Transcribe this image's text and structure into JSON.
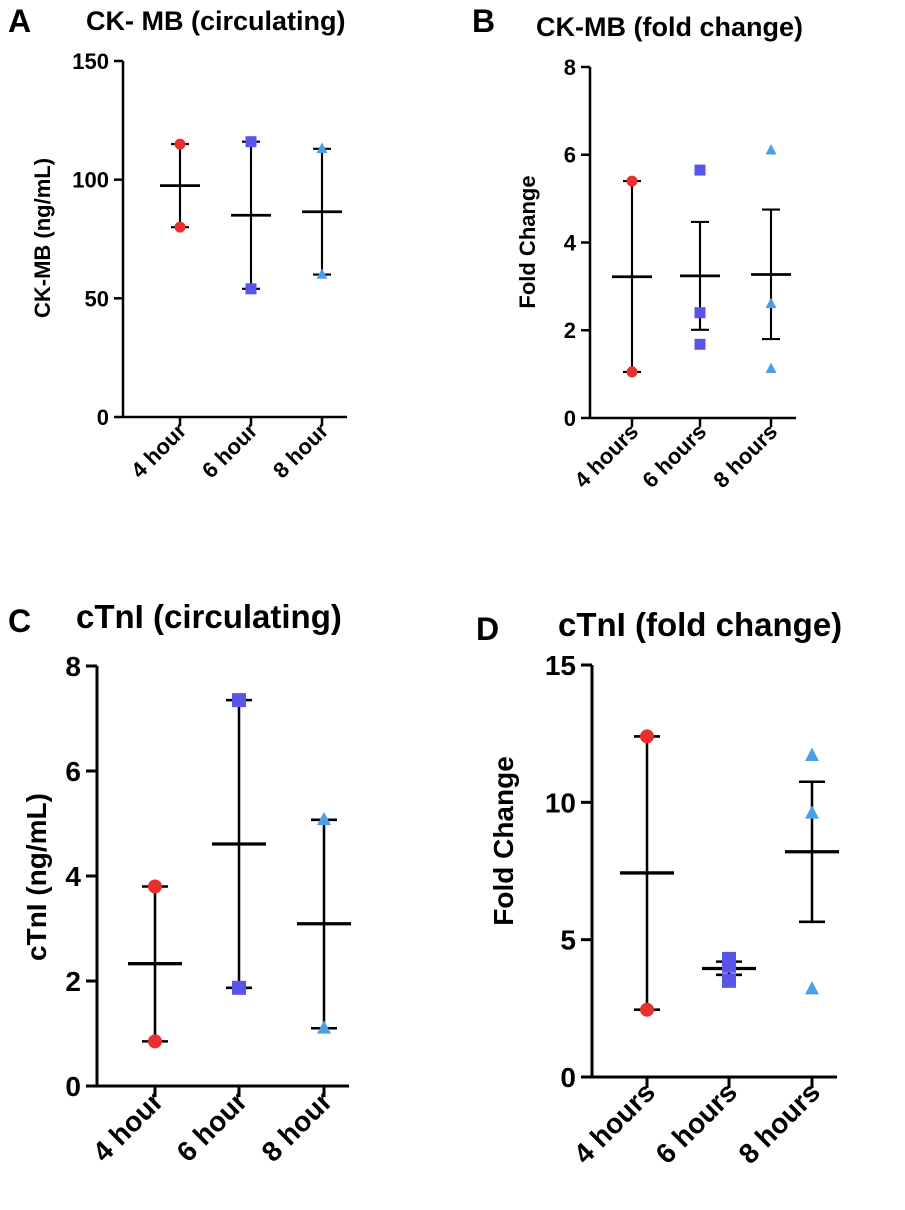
{
  "colors": {
    "red": "#e8302f",
    "purple": "#5a55ea",
    "lightblue": "#4a9fe8",
    "axis": "#000000"
  },
  "chart_data": [
    {
      "type": "scatter",
      "panel_label": "A",
      "title": "CK- MB (circulating)",
      "xlabel": "",
      "ylabel": "CK-MB (ng/mL)",
      "ylim": [
        0,
        150
      ],
      "yticks": [
        0,
        50,
        100,
        150
      ],
      "categories": [
        "4 hour",
        "6 hour",
        "8 hour"
      ],
      "series": [
        {
          "name": "4 hour",
          "marker": "circle",
          "color": "red",
          "points": [
            115,
            80
          ],
          "mean": 97.5,
          "upper": 115,
          "lower": 80
        },
        {
          "name": "6 hour",
          "marker": "square",
          "color": "purple",
          "points": [
            116,
            54
          ],
          "mean": 85,
          "upper": 116,
          "lower": 54
        },
        {
          "name": "8 hour",
          "marker": "triangle",
          "color": "lightblue",
          "points": [
            113,
            60
          ],
          "mean": 86.5,
          "upper": 113,
          "lower": 60
        }
      ]
    },
    {
      "type": "scatter",
      "panel_label": "B",
      "title": "CK-MB (fold change)",
      "xlabel": "",
      "ylabel": "Fold Change",
      "ylim": [
        0,
        8
      ],
      "yticks": [
        0,
        2,
        4,
        6,
        8
      ],
      "categories": [
        "4 hours",
        "6 hours",
        "8 hours"
      ],
      "series": [
        {
          "name": "4 hours",
          "marker": "circle",
          "color": "red",
          "points": [
            5.4,
            1.05
          ],
          "mean": 3.22,
          "upper": 5.4,
          "lower": 1.05
        },
        {
          "name": "6 hours",
          "marker": "square",
          "color": "purple",
          "points": [
            5.65,
            2.4,
            1.68
          ],
          "mean": 3.24,
          "upper": 4.47,
          "lower": 2.01
        },
        {
          "name": "8 hours",
          "marker": "triangle",
          "color": "lightblue",
          "points": [
            6.1,
            2.6,
            1.12
          ],
          "mean": 3.27,
          "upper": 4.75,
          "lower": 1.8
        }
      ]
    },
    {
      "type": "scatter",
      "panel_label": "C",
      "title": "cTnI (circulating)",
      "xlabel": "",
      "ylabel": "cTnI (ng/mL)",
      "ylim": [
        0,
        8
      ],
      "yticks": [
        0,
        2,
        4,
        6,
        8
      ],
      "categories": [
        "4 hour",
        "6 hour",
        "8 hour"
      ],
      "series": [
        {
          "name": "4 hour",
          "marker": "circle",
          "color": "red",
          "points": [
            3.8,
            0.85
          ],
          "mean": 2.33,
          "upper": 3.8,
          "lower": 0.85
        },
        {
          "name": "6 hour",
          "marker": "square",
          "color": "purple",
          "points": [
            7.35,
            1.87
          ],
          "mean": 4.61,
          "upper": 7.35,
          "lower": 1.87
        },
        {
          "name": "8 hour",
          "marker": "triangle",
          "color": "lightblue",
          "points": [
            5.07,
            1.1
          ],
          "mean": 3.09,
          "upper": 5.07,
          "lower": 1.1
        }
      ]
    },
    {
      "type": "scatter",
      "panel_label": "D",
      "title": "cTnI (fold change)",
      "xlabel": "",
      "ylabel": "Fold Change",
      "ylim": [
        0,
        15
      ],
      "yticks": [
        0,
        5,
        10,
        15
      ],
      "categories": [
        "4 hours",
        "6 hours",
        "8 hours"
      ],
      "series": [
        {
          "name": "4 hours",
          "marker": "circle",
          "color": "red",
          "points": [
            12.4,
            2.45
          ],
          "mean": 7.43,
          "upper": 12.4,
          "lower": 2.45
        },
        {
          "name": "6 hours",
          "marker": "square",
          "color": "purple",
          "points": [
            4.3,
            4.05,
            3.5
          ],
          "mean": 3.95,
          "upper": 4.2,
          "lower": 3.72
        },
        {
          "name": "8 hours",
          "marker": "triangle",
          "color": "lightblue",
          "points": [
            11.7,
            9.6,
            3.2
          ],
          "mean": 8.2,
          "upper": 10.75,
          "lower": 5.65
        }
      ]
    }
  ]
}
